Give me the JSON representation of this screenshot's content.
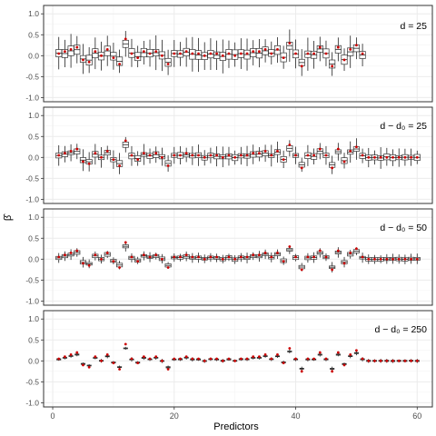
{
  "chart_data": {
    "type": "boxplot",
    "xlabel": "Predictors",
    "ylabel": "β̂",
    "xlim": [
      -1.5,
      62.5
    ],
    "xticks": [
      0,
      20,
      40,
      60
    ],
    "ylim": [
      -1.1,
      1.2
    ],
    "yticks": [
      -1.0,
      -0.5,
      0.0,
      0.5,
      1.0
    ],
    "ytick_labels": [
      "-1.0",
      "-0.5",
      "0.0",
      "0.5",
      "1.0"
    ],
    "true_beta": [
      0.05,
      0.1,
      0.15,
      0.2,
      -0.1,
      -0.15,
      0.1,
      0.0,
      0.15,
      -0.05,
      -0.2,
      0.4,
      0.05,
      -0.05,
      0.1,
      0.05,
      0.1,
      0.0,
      -0.2,
      0.05,
      0.05,
      0.1,
      0.05,
      0.05,
      0.0,
      0.05,
      0.05,
      0.0,
      0.05,
      0.0,
      0.05,
      0.05,
      0.1,
      0.1,
      0.15,
      0.05,
      0.15,
      -0.05,
      0.3,
      0.05,
      -0.25,
      0.05,
      0.05,
      0.2,
      0.05,
      -0.25,
      0.2,
      -0.1,
      0.15,
      0.25,
      0.05,
      0.0,
      0.0,
      0.0,
      0.0,
      0.0,
      0.0,
      0.0,
      0.0,
      0.0
    ],
    "panels": [
      {
        "label": "d = 25",
        "n_predictors": 51,
        "box_half": 0.09,
        "whisker_half": 0.32
      },
      {
        "label": "d − d₀ = 25",
        "n_predictors": 60,
        "box_half": 0.055,
        "whisker_half": 0.2
      },
      {
        "label": "d − d₀ = 50",
        "n_predictors": 60,
        "box_half": 0.035,
        "whisker_half": 0.1
      },
      {
        "label": "d − d₀ = 250",
        "n_predictors": 60,
        "box_half": 0.012,
        "whisker_half": 0.04
      }
    ],
    "colors": {
      "point": "#cc0000",
      "box": "#333333",
      "strip": "#d9d9d9",
      "grid": "#ebebeb"
    }
  }
}
